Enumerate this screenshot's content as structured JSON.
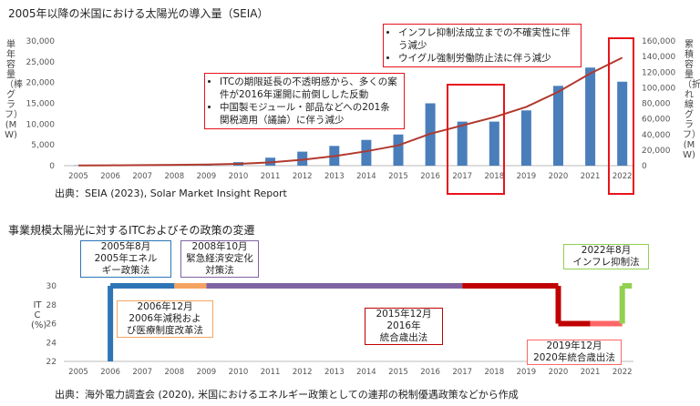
{
  "title_top": "2005年以降の米国における太陽光の導入量（SEIA）",
  "title_bottom": "事業規模太陽光に対するITCおよびその政策の変遷",
  "source_top": "出典：SEIA (2023), Solar Market Insight Report",
  "source_bottom": "出典：海外電力調査会 (2020), 米国におけるエネルギー政策としての連邦の税制優遇政策などから作成",
  "callout_right": [
    "インフレ抑制法成立までの不確実性に伴う減少",
    "ウイグル強制労働防止法に伴う減少"
  ],
  "callout_left": [
    "ITCの期限延長の不透明感から、多くの案件が2016年運開に前倒しした反動",
    "中国製モジュール・部品などへの201条関税適用（議論）に伴う減少"
  ],
  "colors": {
    "bar": "#4a7ebb",
    "line": "#b03a2e",
    "highlight": "#e8131b"
  },
  "chart_data": [
    {
      "type": "bar",
      "title": "2005年以降の米国における太陽光の導入量（SEIA）",
      "categories": [
        "2005",
        "2006",
        "2007",
        "2008",
        "2009",
        "2010",
        "2011",
        "2012",
        "2013",
        "2014",
        "2015",
        "2016",
        "2017",
        "2018",
        "2019",
        "2020",
        "2021",
        "2022"
      ],
      "ylabel": "単年容量（棒グラフ）(MW)",
      "y2label": "累積容量（折れ線グラフ）(MW)",
      "ylim": [
        0,
        30000
      ],
      "y2lim": [
        0,
        160000
      ],
      "yticks": [
        "0",
        "5,000",
        "10,000",
        "15,000",
        "20,000",
        "25,000",
        "30,000"
      ],
      "y2ticks": [
        "0",
        "20,000",
        "40,000",
        "60,000",
        "80,000",
        "100,000",
        "120,000",
        "140,000",
        "160,000"
      ],
      "series": [
        {
          "values": [
            79,
            105,
            160,
            298,
            382,
            852,
            1924,
            3373,
            4751,
            6200,
            7500,
            15000,
            10600,
            10600,
            13300,
            19200,
            23600,
            20200
          ]
        },
        {
          "type": "line",
          "axis": "right",
          "values": [
            400,
            500,
            700,
            1000,
            1400,
            2300,
            4200,
            7600,
            12300,
            18500,
            26000,
            41000,
            51600,
            62200,
            75500,
            94700,
            118300,
            138500
          ]
        }
      ],
      "highlighted": [
        "2017",
        "2018",
        "2022"
      ],
      "grid": false,
      "legend": "none"
    },
    {
      "type": "line",
      "title": "事業規模太陽光に対するITCおよびその政策の変遷",
      "categories": [
        "2005",
        "2006",
        "2007",
        "2008",
        "2009",
        "2010",
        "2011",
        "2012",
        "2013",
        "2014",
        "2015",
        "2016",
        "2017",
        "2018",
        "2019",
        "2020",
        "2021",
        "2022"
      ],
      "ylabel": "ITC (%)",
      "ylim": [
        22,
        30
      ],
      "yticks": [
        "22",
        "24",
        "26",
        "28",
        "30"
      ],
      "segments": [
        {
          "from": 2006,
          "to": 2008,
          "value": 30,
          "color": "#2e75b6"
        },
        {
          "from": 2008,
          "to": 2009,
          "value": 30,
          "color": "#f4a460"
        },
        {
          "from": 2009,
          "to": 2017,
          "value": 30,
          "color": "#8064a2"
        },
        {
          "from": 2017,
          "to": 2020,
          "value": 30,
          "color": "#c00000"
        },
        {
          "from": 2020,
          "to": 2021,
          "value": 26,
          "color": "#c00000"
        },
        {
          "from": 2021,
          "to": 2022,
          "value": 26,
          "color": "#ff6666"
        },
        {
          "from": 2022,
          "to": 2022.3,
          "value": 30,
          "color": "#92d050"
        }
      ],
      "annotations": [
        {
          "text": "2005年8月\n2005年エネル\nギー政策法",
          "color": "#2e75b6"
        },
        {
          "text": "2006年12月\n2006年減税およ\nび医療制度改革法",
          "color": "#f4a460"
        },
        {
          "text": "2008年10月\n緊急経済安定化\n対策法",
          "color": "#8064a2"
        },
        {
          "text": "2015年12月\n2016年\n統合歳出法",
          "color": "#c00000"
        },
        {
          "text": "2019年12月\n2020年統合歳出法",
          "color": "#ff6666"
        },
        {
          "text": "2022年8月\nインフレ抑制法",
          "color": "#92d050"
        }
      ]
    }
  ]
}
